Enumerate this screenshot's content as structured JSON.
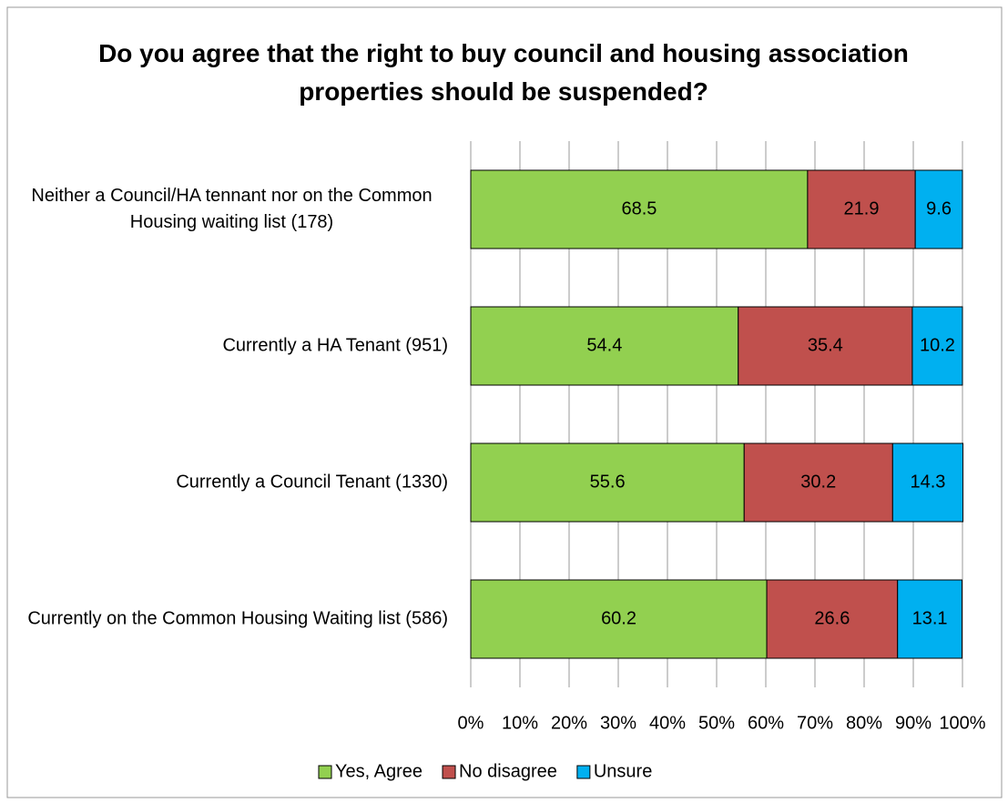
{
  "chart_data": {
    "type": "bar",
    "orientation": "horizontal",
    "stacked": true,
    "title": "Do you agree that the right to buy council and housing association properties should be suspended?",
    "categories": [
      "Neither a Council/HA tennant nor on the Common Housing waiting list (178)",
      "Currently a HA Tenant (951)",
      "Currently a Council Tenant (1330)",
      "Currently on the Common Housing Waiting list (586)"
    ],
    "series": [
      {
        "name": "Yes, Agree",
        "color": "#92d050",
        "values": [
          68.5,
          54.4,
          55.6,
          60.2
        ]
      },
      {
        "name": "No disagree",
        "color": "#c0504d",
        "values": [
          21.9,
          35.4,
          30.2,
          26.6
        ]
      },
      {
        "name": "Unsure",
        "color": "#00b0f0",
        "values": [
          9.6,
          10.2,
          14.3,
          13.1
        ]
      }
    ],
    "xlim": [
      0,
      100
    ],
    "xticks": [
      {
        "value": 0,
        "label": "0%"
      },
      {
        "value": 10,
        "label": "10%"
      },
      {
        "value": 20,
        "label": "20%"
      },
      {
        "value": 30,
        "label": "30%"
      },
      {
        "value": 40,
        "label": "40%"
      },
      {
        "value": 50,
        "label": "50%"
      },
      {
        "value": 60,
        "label": "60%"
      },
      {
        "value": 70,
        "label": "70%"
      },
      {
        "value": 80,
        "label": "80%"
      },
      {
        "value": 90,
        "label": "90%"
      },
      {
        "value": 100,
        "label": "100%"
      }
    ],
    "grid": true,
    "legend": "bottom"
  }
}
